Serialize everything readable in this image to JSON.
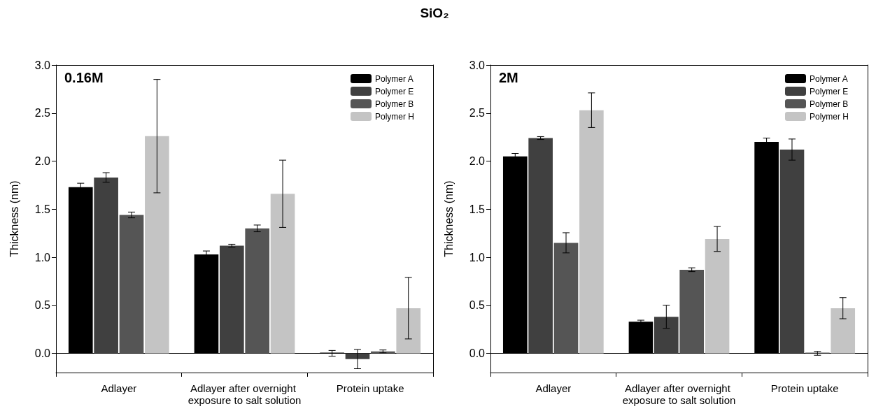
{
  "chart_data": [
    {
      "type": "bar",
      "title": "SiO₂",
      "ylabel": "Thickness (nm)",
      "annotations": [
        "0.16M"
      ],
      "categories": [
        "Adlayer",
        "Adlayer after overnight exposure to salt solution",
        "Protein uptake"
      ],
      "series": [
        {
          "name": "Polymer A",
          "color": "#000000",
          "values": [
            1.73,
            1.03,
            0.0
          ],
          "errors": [
            0.04,
            0.035,
            0.03
          ]
        },
        {
          "name": "Polymer E",
          "color": "#404040",
          "values": [
            1.83,
            1.12,
            -0.06
          ],
          "errors": [
            0.05,
            0.015,
            0.1
          ]
        },
        {
          "name": "Polymer B",
          "color": "#555555",
          "values": [
            1.44,
            1.3,
            0.02
          ],
          "errors": [
            0.03,
            0.035,
            0.015
          ]
        },
        {
          "name": "Polymer H",
          "color": "#c4c4c4",
          "values": [
            2.26,
            1.66,
            0.47
          ],
          "errors": [
            0.59,
            0.35,
            0.32
          ]
        }
      ],
      "ylim": [
        -0.2,
        3.0
      ],
      "yticks": [
        {
          "value": 0,
          "label": "0.0"
        },
        0.5,
        {
          "value": 1,
          "label": "1.0"
        },
        1.5,
        {
          "value": 2,
          "label": "2.0"
        },
        2.5,
        {
          "value": 3,
          "label": "3.0"
        }
      ],
      "legend": "top right"
    },
    {
      "type": "bar",
      "ylabel": "Thickness (nm)",
      "annotations": [
        "2M"
      ],
      "categories": [
        "Adlayer",
        "Adlayer after overnight exposure to salt solution",
        "Protein uptake"
      ],
      "series": [
        {
          "name": "Polymer A",
          "color": "#000000",
          "values": [
            2.05,
            0.33,
            2.2
          ],
          "errors": [
            0.03,
            0.015,
            0.04
          ]
        },
        {
          "name": "Polymer E",
          "color": "#404040",
          "values": [
            2.24,
            0.38,
            2.12
          ],
          "errors": [
            0.015,
            0.12,
            0.11
          ]
        },
        {
          "name": "Polymer B",
          "color": "#555555",
          "values": [
            1.15,
            0.87,
            0.0
          ],
          "errors": [
            0.105,
            0.02,
            0.02
          ]
        },
        {
          "name": "Polymer H",
          "color": "#c4c4c4",
          "values": [
            2.53,
            1.19,
            0.47
          ],
          "errors": [
            0.18,
            0.13,
            0.11
          ]
        }
      ],
      "ylim": [
        -0.2,
        3.0
      ],
      "yticks": [
        {
          "value": 0,
          "label": "0.0"
        },
        0.5,
        {
          "value": 1,
          "label": "1.0"
        },
        1.5,
        {
          "value": 2,
          "label": "2.0"
        },
        2.5,
        {
          "value": 3,
          "label": "3.0"
        }
      ],
      "legend": "top right"
    }
  ]
}
